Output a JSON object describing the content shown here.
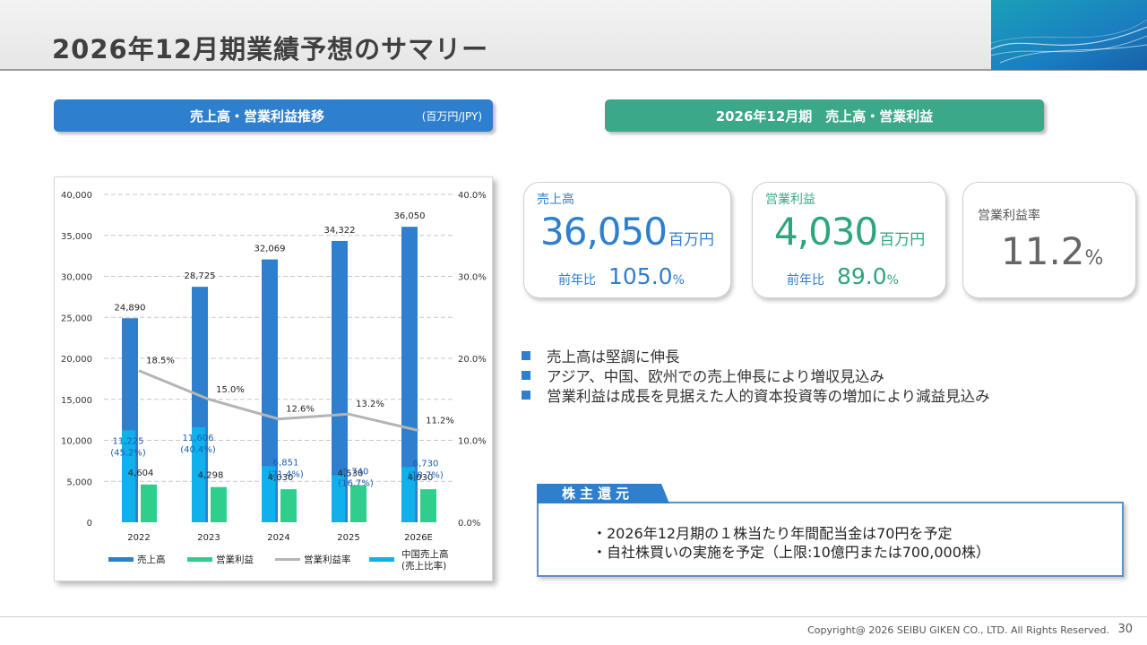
{
  "page": {
    "title": "2026年12月期業績予想のサマリー",
    "copyright": "Copyright@ 2026 SEIBU GIKEN CO., LTD. All Rights  Reserved.",
    "page_number": "30"
  },
  "left_header": {
    "label": "売上高・営業利益推移",
    "unit": "(百万円/JPY)"
  },
  "right_header": {
    "label": "2026年12月期　売上高・営業利益"
  },
  "cards": {
    "sales": {
      "label": "売上高",
      "value": "36,050",
      "unit": "百万円",
      "yoy_label": "前年比",
      "yoy_value": "105.0",
      "yoy_unit": "%"
    },
    "profit": {
      "label": "営業利益",
      "value": "4,030",
      "unit": "百万円",
      "yoy_label": "前年比",
      "yoy_value": "89.0",
      "yoy_unit": "%"
    },
    "margin": {
      "label": "営業利益率",
      "value": "11.2",
      "unit": "%"
    }
  },
  "bullets": [
    "売上高は堅調に伸長",
    "アジア、中国、欧州での売上伸長により増収見込み",
    "営業利益は成長を見据えた人的資本投資等の増加により減益見込み"
  ],
  "shareholder": {
    "tab": "株主還元",
    "lines": [
      "・2026年12月期の１株当たり年間配当金は70円を予定",
      "・自社株買いの実施を予定（上限:10億円または700,000株）"
    ]
  },
  "colors": {
    "sales_bar": "#2e7fcd",
    "profit_bar": "#2fce8d",
    "margin_line": "#b4b4b4",
    "china_bar": "#0fb0ec",
    "header_blue": "#2e7fcd",
    "header_green": "#3aa889"
  },
  "chart_data": {
    "type": "bar",
    "categories": [
      "2022",
      "2023",
      "2024",
      "2025",
      "2026E"
    ],
    "y_left": {
      "ylim": [
        0,
        40000
      ],
      "ticks": [
        0,
        5000,
        10000,
        15000,
        20000,
        25000,
        30000,
        35000,
        40000
      ],
      "tick_labels": [
        "0",
        "5,000",
        "10,000",
        "15,000",
        "20,000",
        "25,000",
        "30,000",
        "35,000",
        "40,000"
      ]
    },
    "y_right": {
      "ylim": [
        0,
        40
      ],
      "ticks": [
        0,
        10,
        20,
        30,
        40
      ],
      "tick_labels": [
        "0.0%",
        "10.0%",
        "20.0%",
        "30.0%",
        "40.0%"
      ]
    },
    "grid": true,
    "legend_position": "bottom",
    "series": [
      {
        "name": "売上高",
        "kind": "bar",
        "axis": "left",
        "values": [
          24890,
          28725,
          32069,
          34322,
          36050
        ],
        "labels": [
          "24,890",
          "28,725",
          "32,069",
          "34,322",
          "36,050"
        ]
      },
      {
        "name": "営業利益",
        "kind": "bar",
        "axis": "left",
        "values": [
          4604,
          4298,
          4030,
          4530,
          4030
        ],
        "labels": [
          "4,604",
          "4,298",
          "4,030",
          "4,530",
          "4,030"
        ]
      },
      {
        "name": "営業利益率",
        "kind": "line",
        "axis": "right",
        "values": [
          18.5,
          15.0,
          12.6,
          13.2,
          11.2
        ],
        "labels": [
          "18.5%",
          "15.0%",
          "12.6%",
          "13.2%",
          "11.2%"
        ]
      },
      {
        "name": "中国売上高",
        "name_line2": "(売上比率)",
        "kind": "bar",
        "axis": "left",
        "values": [
          11225,
          11606,
          6851,
          5740,
          6730
        ],
        "labels": [
          "11,225",
          "11,606",
          "6,851",
          "5,740",
          "6,730"
        ],
        "sub_labels": [
          "(45.2%)",
          "(40.4%)",
          "(21.4%)",
          "(16.7%)",
          "(18.7%)"
        ]
      }
    ]
  }
}
